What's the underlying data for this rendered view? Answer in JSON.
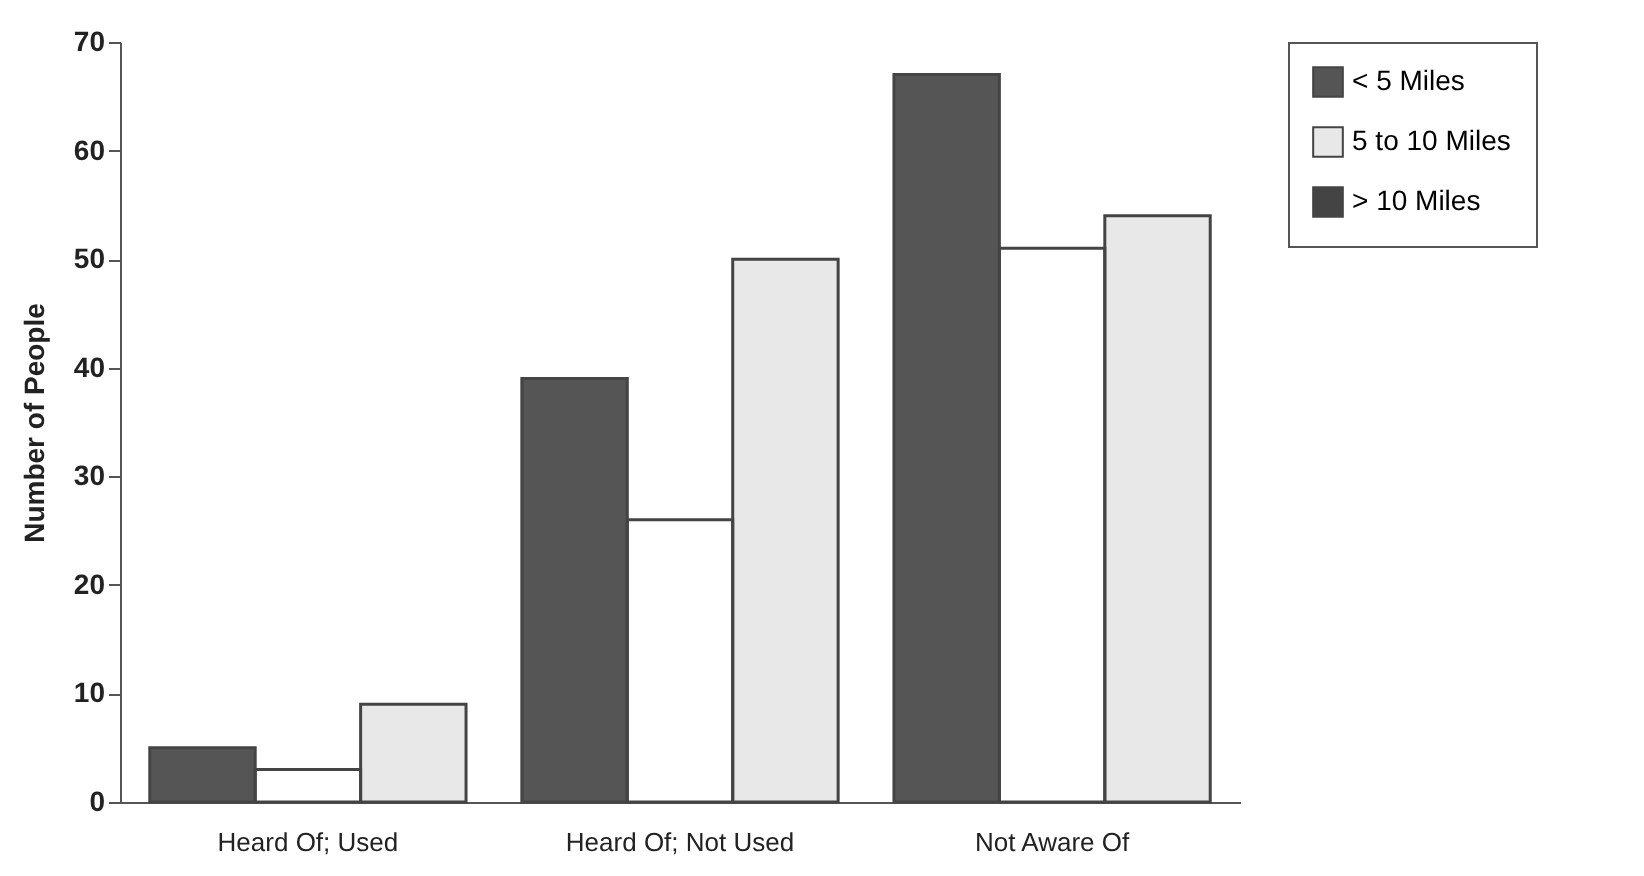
{
  "chart_data": {
    "type": "bar",
    "ylabel": "Number of People",
    "categories": [
      "Heard Of; Used",
      "Heard Of; Not Used",
      "Not Aware Of"
    ],
    "series": [
      {
        "name": "< 5 Miles",
        "color": "#555555",
        "values": [
          5,
          39,
          67
        ]
      },
      {
        "name": "5 to 10 Miles",
        "color": "#e8e8e8",
        "values": [
          9,
          50,
          54
        ]
      },
      {
        "name": "> 10 Miles",
        "color": "#444444",
        "values": [
          3,
          26,
          51
        ]
      }
    ],
    "ylim": [
      0,
      70
    ],
    "yticks": [
      0,
      10,
      20,
      30,
      40,
      50,
      60,
      70
    ],
    "grid": false,
    "legend": "right"
  }
}
